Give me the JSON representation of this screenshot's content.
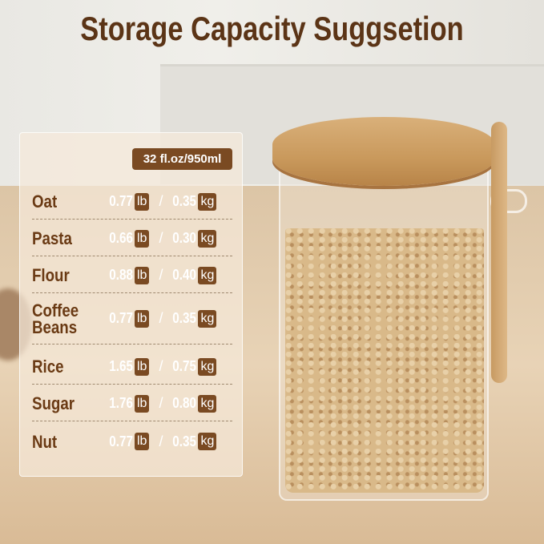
{
  "title": "Storage Capacity Suggsetion",
  "capacity": "32 fl.oz/950ml",
  "unit_lb": "lb",
  "unit_kg": "kg",
  "separator": "/",
  "rows": [
    {
      "name": "Oat",
      "lb": "0.77",
      "kg": "0.35"
    },
    {
      "name": "Pasta",
      "lb": "0.66",
      "kg": "0.30"
    },
    {
      "name": "Flour",
      "lb": "0.88",
      "kg": "0.40"
    },
    {
      "name": "Coffee Beans",
      "lb": "0.77",
      "kg": "0.35"
    },
    {
      "name": "Rice",
      "lb": "1.65",
      "kg": "0.75"
    },
    {
      "name": "Sugar",
      "lb": "1.76",
      "kg": "0.80"
    },
    {
      "name": "Nut",
      "lb": "0.77",
      "kg": "0.35"
    }
  ],
  "colors": {
    "brand": "#7a4a22",
    "title": "#5b3416"
  }
}
